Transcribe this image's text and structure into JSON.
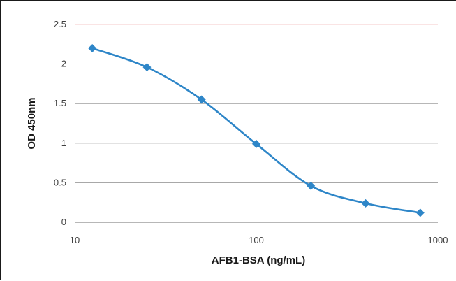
{
  "chart_data": {
    "type": "line",
    "title": "",
    "xlabel": "AFB1-BSA (ng/mL)",
    "ylabel": "OD 450nm",
    "x_scale": "log",
    "xlim": [
      10,
      1000
    ],
    "ylim": [
      0,
      2.5
    ],
    "x_ticks": [
      "10",
      "100",
      "1000"
    ],
    "y_ticks": [
      "0",
      "0.5",
      "1",
      "1.5",
      "2",
      "2.5"
    ],
    "grid": "horizontal",
    "legend": "none",
    "series": [
      {
        "x": [
          12.5,
          25,
          50,
          100,
          200,
          400,
          800
        ],
        "y": [
          2.2,
          1.96,
          1.55,
          0.99,
          0.46,
          0.24,
          0.12
        ],
        "marker": "diamond",
        "smooth": true,
        "color": "#2E86C8"
      }
    ],
    "colors": {
      "line": "#2E86C8",
      "grid_lower": "#8c8c8c",
      "grid_upper": "#f0b8b8"
    }
  }
}
